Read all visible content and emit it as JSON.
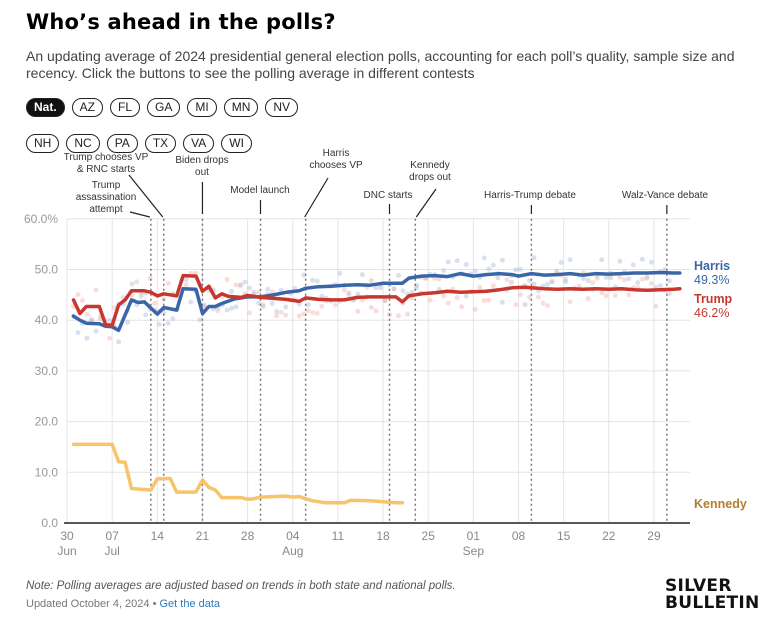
{
  "header": {
    "title": "Who’s ahead in the polls?",
    "subtitle": "An updating average of 2024 presidential general election polls, accounting for each poll’s quality, sample size and recency. Click the buttons to see the polling average in different contests"
  },
  "contest_buttons": {
    "row1": [
      "Nat.",
      "AZ",
      "FL",
      "GA",
      "MI",
      "MN",
      "NV"
    ],
    "row2": [
      "NH",
      "NC",
      "PA",
      "TX",
      "VA",
      "WI"
    ],
    "active": "Nat."
  },
  "footer": {
    "note": "Note: Polling averages are adjusted based on trends in both state and national polls.",
    "updated": "Updated October 4, 2024 •",
    "data_link": "Get the data",
    "logo_line1": "SILVER",
    "logo_line2": "BULLETIN"
  },
  "colors": {
    "harris": "#3a66a8",
    "trump": "#c8372d",
    "kennedy": "#f7c46c",
    "kennedy_label": "#b08030",
    "grid": "#e4e4e4",
    "axis_text": "#999999"
  },
  "chart_data": {
    "type": "line",
    "title": "",
    "xlabel": "",
    "ylabel": "",
    "x_start": "2024-06-30",
    "x_end": "2024-10-04",
    "ylim": [
      0,
      60
    ],
    "yticks": [
      {
        "value": 0,
        "label": "0.0"
      },
      {
        "value": 10,
        "label": "10.0"
      },
      {
        "value": 20,
        "label": "20.0"
      },
      {
        "value": 30,
        "label": "30.0"
      },
      {
        "value": 40,
        "label": "40.0"
      },
      {
        "value": 50,
        "label": "50.0"
      },
      {
        "value": 60,
        "label": "60.0%"
      }
    ],
    "xticks": [
      {
        "day": 0,
        "label": "30",
        "sub": "Jun"
      },
      {
        "day": 7,
        "label": "07",
        "sub": "Jul"
      },
      {
        "day": 14,
        "label": "14",
        "sub": ""
      },
      {
        "day": 21,
        "label": "21",
        "sub": ""
      },
      {
        "day": 28,
        "label": "28",
        "sub": ""
      },
      {
        "day": 35,
        "label": "04",
        "sub": "Aug"
      },
      {
        "day": 42,
        "label": "11",
        "sub": ""
      },
      {
        "day": 49,
        "label": "18",
        "sub": ""
      },
      {
        "day": 56,
        "label": "25",
        "sub": ""
      },
      {
        "day": 63,
        "label": "01",
        "sub": "Sep"
      },
      {
        "day": 70,
        "label": "08",
        "sub": ""
      },
      {
        "day": 77,
        "label": "15",
        "sub": ""
      },
      {
        "day": 84,
        "label": "22",
        "sub": ""
      },
      {
        "day": 91,
        "label": "29",
        "sub": ""
      }
    ],
    "grid": true,
    "legend": "right (inline labels at line ends)",
    "series": [
      {
        "name": "Harris",
        "label_value": "49.3%",
        "points": [
          [
            1,
            40.8
          ],
          [
            2,
            40
          ],
          [
            3,
            39.4
          ],
          [
            5,
            39.3
          ],
          [
            6,
            38.8
          ],
          [
            7,
            38.7
          ],
          [
            8,
            38
          ],
          [
            9,
            41
          ],
          [
            10,
            44
          ],
          [
            11,
            43.5
          ],
          [
            12,
            43.6
          ],
          [
            14,
            41.2
          ],
          [
            15,
            42.5
          ],
          [
            17,
            42
          ],
          [
            18,
            46.2
          ],
          [
            20,
            46.1
          ],
          [
            21,
            41.3
          ],
          [
            22,
            42.7
          ],
          [
            23,
            42.7
          ],
          [
            24,
            43.3
          ],
          [
            26,
            44.2
          ],
          [
            28,
            44.6
          ],
          [
            30,
            44.6
          ],
          [
            32,
            45
          ],
          [
            34,
            45.5
          ],
          [
            36,
            45.8
          ],
          [
            37,
            46.3
          ],
          [
            39,
            46.6
          ],
          [
            41,
            46.7
          ],
          [
            43,
            46.9
          ],
          [
            45,
            47
          ],
          [
            47,
            46.9
          ],
          [
            49,
            47.3
          ],
          [
            51,
            47.3
          ],
          [
            52,
            47.3
          ],
          [
            53,
            48.3
          ],
          [
            55,
            48.7
          ],
          [
            57,
            48.8
          ],
          [
            59,
            48.6
          ],
          [
            61,
            49.2
          ],
          [
            63,
            48.7
          ],
          [
            65,
            49
          ],
          [
            67,
            49.2
          ],
          [
            69,
            49
          ],
          [
            70,
            48.7
          ],
          [
            72,
            49.2
          ],
          [
            74,
            48.9
          ],
          [
            76,
            49
          ],
          [
            78,
            49.2
          ],
          [
            80,
            48.9
          ],
          [
            82,
            49.2
          ],
          [
            84,
            49.1
          ],
          [
            86,
            49.2
          ],
          [
            88,
            49.3
          ],
          [
            90,
            49.3
          ],
          [
            92,
            49.4
          ],
          [
            94,
            49.3
          ],
          [
            95,
            49.3
          ]
        ]
      },
      {
        "name": "Trump",
        "label_value": "46.2%",
        "points": [
          [
            1,
            44
          ],
          [
            2,
            41.3
          ],
          [
            3,
            42.7
          ],
          [
            5,
            42.7
          ],
          [
            6,
            39.1
          ],
          [
            7,
            39
          ],
          [
            8,
            43
          ],
          [
            9,
            44
          ],
          [
            10,
            45.8
          ],
          [
            12,
            45.8
          ],
          [
            13,
            45.5
          ],
          [
            14,
            44.8
          ],
          [
            15,
            45.2
          ],
          [
            17,
            44.8
          ],
          [
            18,
            48.8
          ],
          [
            20,
            48.7
          ],
          [
            21,
            45.7
          ],
          [
            22,
            46.7
          ],
          [
            23,
            44.4
          ],
          [
            24,
            45.2
          ],
          [
            25,
            44.7
          ],
          [
            27,
            44.5
          ],
          [
            28,
            44.9
          ],
          [
            30,
            44.5
          ],
          [
            32,
            44.3
          ],
          [
            34,
            44.1
          ],
          [
            36,
            43.7
          ],
          [
            37,
            44.4
          ],
          [
            39,
            44.1
          ],
          [
            41,
            44
          ],
          [
            43,
            44
          ],
          [
            45,
            44.5
          ],
          [
            47,
            44.6
          ],
          [
            49,
            44.6
          ],
          [
            51,
            44.6
          ],
          [
            52,
            43.6
          ],
          [
            53,
            44.8
          ],
          [
            55,
            45.2
          ],
          [
            57,
            45.4
          ],
          [
            59,
            45.7
          ],
          [
            61,
            45.5
          ],
          [
            63,
            45.6
          ],
          [
            65,
            45.7
          ],
          [
            67,
            46
          ],
          [
            69,
            46.4
          ],
          [
            71,
            46.5
          ],
          [
            72,
            46.4
          ],
          [
            74,
            46.2
          ],
          [
            76,
            46.1
          ],
          [
            78,
            46.2
          ],
          [
            80,
            46.1
          ],
          [
            82,
            46.2
          ],
          [
            84,
            46.1
          ],
          [
            86,
            46.2
          ],
          [
            88,
            46
          ],
          [
            90,
            45.9
          ],
          [
            92,
            46
          ],
          [
            94,
            46.1
          ],
          [
            95,
            46.2
          ]
        ]
      },
      {
        "name": "Kennedy",
        "label_value": "",
        "points": [
          [
            1,
            15.5
          ],
          [
            7,
            15.5
          ],
          [
            8,
            12.1
          ],
          [
            9,
            12
          ],
          [
            10,
            6.8
          ],
          [
            12,
            6.6
          ],
          [
            13,
            6.5
          ],
          [
            14,
            8.7
          ],
          [
            16,
            8.8
          ],
          [
            17,
            6.1
          ],
          [
            20,
            6.1
          ],
          [
            21,
            8.5
          ],
          [
            22,
            7
          ],
          [
            23,
            6.5
          ],
          [
            24,
            5
          ],
          [
            27,
            5
          ],
          [
            28,
            4.7
          ],
          [
            29,
            4.8
          ],
          [
            30,
            5.1
          ],
          [
            34,
            5.3
          ],
          [
            35,
            5.1
          ],
          [
            36,
            5.2
          ],
          [
            37,
            4.8
          ],
          [
            38,
            4.4
          ],
          [
            40,
            4
          ],
          [
            43,
            4
          ],
          [
            44,
            4.5
          ],
          [
            47,
            4.4
          ],
          [
            49,
            4.2
          ],
          [
            51,
            4
          ],
          [
            52,
            4
          ]
        ]
      }
    ],
    "events": [
      {
        "day": 13,
        "label": [
          "Trump",
          "assassination",
          "attempt"
        ]
      },
      {
        "day": 15,
        "label": [
          "Trump chooses VP",
          "& RNC starts"
        ]
      },
      {
        "day": 21,
        "label": [
          "Biden drops",
          "out"
        ]
      },
      {
        "day": 30,
        "label": [
          "Model launch"
        ]
      },
      {
        "day": 37,
        "label": [
          "Harris",
          "chooses VP"
        ]
      },
      {
        "day": 50,
        "label": [
          "DNC starts"
        ]
      },
      {
        "day": 54,
        "label": [
          "Kennedy",
          "drops out"
        ]
      },
      {
        "day": 72,
        "label": [
          "Harris-Trump debate"
        ]
      },
      {
        "day": 93,
        "label": [
          "Walz-Vance debate"
        ]
      }
    ]
  }
}
